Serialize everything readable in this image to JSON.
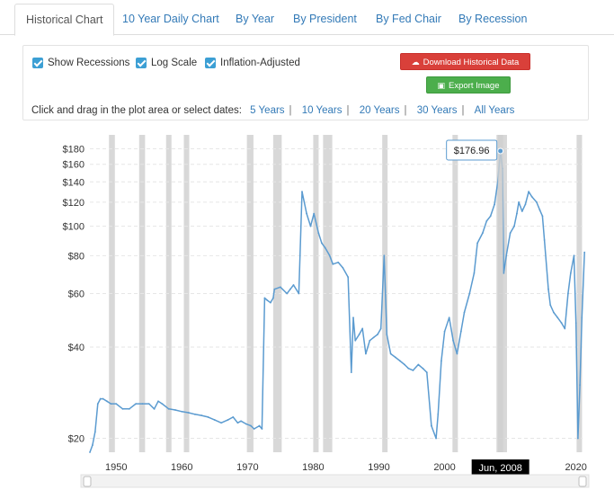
{
  "tabs": [
    {
      "label": "Historical Chart",
      "active": true
    },
    {
      "label": "10 Year Daily Chart"
    },
    {
      "label": "By Year"
    },
    {
      "label": "By President"
    },
    {
      "label": "By Fed Chair"
    },
    {
      "label": "By Recession"
    }
  ],
  "options": {
    "show_recessions": {
      "label": "Show Recessions",
      "checked": true
    },
    "log_scale": {
      "label": "Log Scale",
      "checked": true
    },
    "inflation_adjusted": {
      "label": "Inflation-Adjusted",
      "checked": true
    }
  },
  "buttons": {
    "download": {
      "label": "Download Historical Data",
      "icon": "download-cloud-icon",
      "color": "#d9403a"
    },
    "export": {
      "label": "Export Image",
      "icon": "image-icon",
      "color": "#4cae4c"
    }
  },
  "date_range": {
    "prompt": "Click and drag in the plot area or select dates:",
    "links": [
      "5 Years",
      "10 Years",
      "20 Years",
      "30 Years",
      "All Years"
    ]
  },
  "tooltip": {
    "value_label": "$176.96",
    "date_label": "Jun, 2008"
  },
  "chart_data": {
    "type": "line",
    "log_scale": true,
    "line_color": "#5b9bd0",
    "recession_color": "#d8d8d8",
    "y_ticks": [
      {
        "value": 20,
        "label": "$20"
      },
      {
        "value": 40,
        "label": "$40"
      },
      {
        "value": 60,
        "label": "$60"
      },
      {
        "value": 80,
        "label": "$80"
      },
      {
        "value": 100,
        "label": "$100"
      },
      {
        "value": 120,
        "label": "$120"
      },
      {
        "value": 140,
        "label": "$140"
      },
      {
        "value": 160,
        "label": "$160"
      },
      {
        "value": 180,
        "label": "$180"
      }
    ],
    "x_ticks": [
      {
        "value": 1950,
        "label": "1950"
      },
      {
        "value": 1960,
        "label": "1960"
      },
      {
        "value": 1970,
        "label": "1970"
      },
      {
        "value": 1980,
        "label": "1980"
      },
      {
        "value": 1990,
        "label": "1990"
      },
      {
        "value": 2000,
        "label": "2000"
      },
      {
        "value": 2010,
        "label": "2010"
      },
      {
        "value": 2020,
        "label": "2020"
      }
    ],
    "xlim": [
      1946,
      2021
    ],
    "ylim": [
      18,
      200
    ],
    "recessions": [
      [
        1948.9,
        1949.8
      ],
      [
        1953.5,
        1954.4
      ],
      [
        1957.6,
        1958.3
      ],
      [
        1960.3,
        1961.1
      ],
      [
        1969.9,
        1970.9
      ],
      [
        1973.9,
        1975.2
      ],
      [
        1980.0,
        1980.5
      ],
      [
        1981.5,
        1982.9
      ],
      [
        1990.5,
        1991.2
      ],
      [
        2001.2,
        2001.9
      ],
      [
        2007.9,
        2009.5
      ],
      [
        2020.1,
        2020.4
      ]
    ],
    "series": [
      {
        "x": [
          1946.0,
          1946.4,
          1946.8,
          1947.2,
          1947.6,
          1948.0,
          1948.6,
          1949.2,
          1950.0,
          1951.0,
          1952.0,
          1953.0,
          1954.0,
          1955.0,
          1955.8,
          1956.4,
          1957.0,
          1958.0,
          1959.0,
          1960.0,
          1961.0,
          1962.0,
          1963.0,
          1964.0,
          1965.0,
          1966.0,
          1967.0,
          1967.8,
          1968.5,
          1969.0,
          1969.8,
          1970.5,
          1971.0,
          1971.8,
          1972.2,
          1972.6,
          1973.0,
          1973.5,
          1973.9,
          1974.1,
          1975.0,
          1976.0,
          1976.5,
          1977.0,
          1977.8,
          1978.3,
          1979.0,
          1979.6,
          1980.1,
          1980.8,
          1981.3,
          1981.8,
          1982.5,
          1983.0,
          1983.8,
          1984.5,
          1985.3,
          1985.8,
          1986.1,
          1986.4,
          1987.0,
          1987.5,
          1988.0,
          1988.6,
          1989.2,
          1989.8,
          1990.3,
          1990.8,
          1991.2,
          1991.8,
          1992.5,
          1993.2,
          1993.9,
          1994.5,
          1995.2,
          1996.0,
          1996.7,
          1997.3,
          1998.0,
          1998.7,
          1999.0,
          1999.5,
          2000.0,
          2000.7,
          2001.3,
          2001.9,
          2002.5,
          2003.0,
          2003.8,
          2004.5,
          2005.0,
          2005.8,
          2006.4,
          2007.0,
          2007.6,
          2008.1,
          2008.5,
          2008.8,
          2009.0,
          2009.4,
          2010.0,
          2010.6,
          2011.0,
          2011.3,
          2011.8,
          2012.3,
          2012.8,
          2013.3,
          2014.0,
          2014.5,
          2014.9,
          2015.2,
          2015.8,
          2016.1,
          2016.6,
          2017.2,
          2017.8,
          2018.3,
          2018.8,
          2019.2,
          2019.7,
          2020.0,
          2020.3,
          2020.6,
          2020.9,
          2021.3
        ],
        "y": [
          18,
          19,
          21,
          26,
          27,
          27,
          26.5,
          26,
          26,
          25,
          25,
          26,
          26,
          26,
          25,
          26.5,
          26,
          25,
          24.8,
          24.5,
          24.3,
          24,
          23.8,
          23.5,
          23,
          22.5,
          23,
          23.5,
          22.5,
          22.8,
          22.3,
          22,
          21.5,
          22,
          21.5,
          58,
          57,
          56,
          58,
          62,
          63,
          60,
          62,
          64,
          60,
          130,
          110,
          100,
          110,
          95,
          88,
          85,
          80,
          75,
          76,
          73,
          68,
          33,
          50,
          42,
          44,
          46,
          38,
          42,
          43,
          44,
          46,
          80,
          44,
          38,
          37,
          36,
          35,
          34,
          33.5,
          35,
          34,
          33,
          22,
          20,
          24,
          36,
          45,
          50,
          42,
          38,
          45,
          52,
          60,
          70,
          88,
          95,
          104,
          108,
          118,
          140,
          176.96,
          155,
          70,
          80,
          95,
          100,
          110,
          120,
          112,
          118,
          130,
          125,
          120,
          113,
          108,
          90,
          62,
          55,
          52,
          50,
          48,
          46,
          60,
          70,
          80,
          48,
          20,
          30,
          50,
          82
        ]
      }
    ],
    "highlight": {
      "x": 2008.5,
      "y": 176.96
    }
  }
}
